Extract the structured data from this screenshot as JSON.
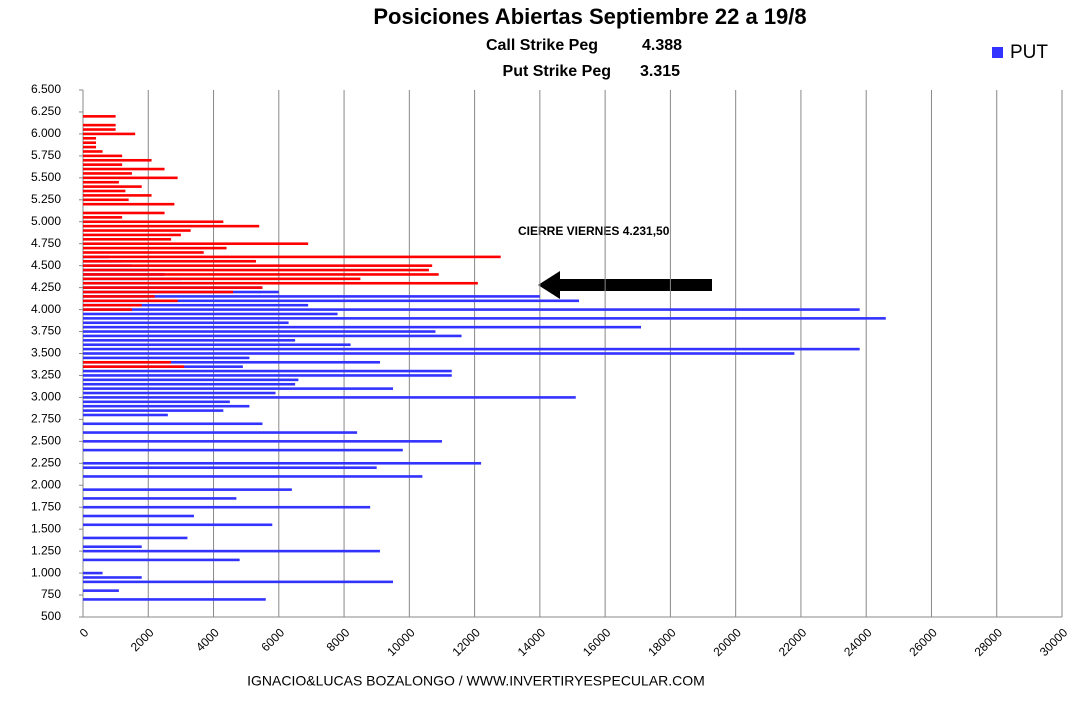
{
  "chart_data": {
    "type": "hbar",
    "title": "Posiciones Abiertas Septiembre 22 a 19/8",
    "subtitle_lines": [
      [
        "Call Strike Peg",
        "4.388"
      ],
      [
        "Put Strike Peg",
        "3.315"
      ]
    ],
    "annotation": "CIERRE VIERNES 4.231,50",
    "footer": "IGNACIO&LUCAS BOZALONGO / WWW.INVERTIRYESPECULAR.COM",
    "legend": "top-right",
    "grid": true,
    "xlim": [
      0,
      30000
    ],
    "xticks": [
      0,
      2000,
      4000,
      6000,
      8000,
      10000,
      12000,
      14000,
      16000,
      18000,
      20000,
      22000,
      24000,
      26000,
      28000,
      30000
    ],
    "ylim": [
      500,
      6500
    ],
    "yticks": [
      {
        "value": 500,
        "label": "500"
      },
      {
        "value": 750,
        "label": "750"
      },
      {
        "value": 1000,
        "label": "1.000"
      },
      {
        "value": 1250,
        "label": "1.250"
      },
      {
        "value": 1500,
        "label": "1.500"
      },
      {
        "value": 1750,
        "label": "1.750"
      },
      {
        "value": 2000,
        "label": "2.000"
      },
      {
        "value": 2250,
        "label": "2.250"
      },
      {
        "value": 2500,
        "label": "2.500"
      },
      {
        "value": 2750,
        "label": "2.750"
      },
      {
        "value": 3000,
        "label": "3.000"
      },
      {
        "value": 3250,
        "label": "3.250"
      },
      {
        "value": 3500,
        "label": "3.500"
      },
      {
        "value": 3750,
        "label": "3.750"
      },
      {
        "value": 4000,
        "label": "4.000"
      },
      {
        "value": 4250,
        "label": "4.250"
      },
      {
        "value": 4500,
        "label": "4.500"
      },
      {
        "value": 4750,
        "label": "4.750"
      },
      {
        "value": 5000,
        "label": "5.000"
      },
      {
        "value": 5250,
        "label": "5.250"
      },
      {
        "value": 5500,
        "label": "5.500"
      },
      {
        "value": 5750,
        "label": "5.750"
      },
      {
        "value": 6000,
        "label": "6.000"
      },
      {
        "value": 6250,
        "label": "6.250"
      },
      {
        "value": 6500,
        "label": "6.500"
      }
    ],
    "y": [
      700,
      800,
      900,
      950,
      1000,
      1150,
      1250,
      1300,
      1400,
      1550,
      1650,
      1750,
      1850,
      1950,
      2100,
      2200,
      2250,
      2400,
      2500,
      2600,
      2700,
      2800,
      2850,
      2900,
      2950,
      3000,
      3050,
      3100,
      3150,
      3200,
      3250,
      3300,
      3350,
      3400,
      3450,
      3500,
      3550,
      3600,
      3650,
      3700,
      3750,
      3800,
      3850,
      3900,
      3950,
      4000,
      4050,
      4100,
      4150,
      4200,
      4250,
      4300,
      4350,
      4400,
      4450,
      4500,
      4550,
      4600,
      4650,
      4700,
      4750,
      4800,
      4850,
      4900,
      4950,
      5000,
      5050,
      5100,
      5150,
      5200,
      5250,
      5300,
      5350,
      5400,
      5450,
      5500,
      5550,
      5600,
      5650,
      5700,
      5750,
      5800,
      5850,
      5900,
      5950,
      6000,
      6050,
      6100,
      6150,
      6200
    ],
    "series": [
      {
        "name": "PUT",
        "color": "#3333ff",
        "values": [
          5600,
          1100,
          9500,
          1800,
          600,
          4800,
          9100,
          1800,
          3200,
          5800,
          3400,
          8800,
          4700,
          6400,
          10400,
          9000,
          12200,
          9800,
          11000,
          8400,
          5500,
          2600,
          4300,
          5100,
          4500,
          15100,
          5900,
          9500,
          6500,
          6600,
          11300,
          11300,
          4900,
          9100,
          5100,
          21800,
          23800,
          8200,
          6500,
          11600,
          10800,
          17100,
          6300,
          24600,
          7800,
          23800,
          6900,
          15200,
          14000,
          6000,
          5500,
          4000,
          3000,
          2500,
          2000,
          1500,
          1200,
          800,
          null,
          null,
          null,
          null,
          null,
          null,
          null,
          null,
          null,
          null,
          null,
          null,
          null,
          null,
          null,
          null,
          null,
          null,
          null,
          null,
          null,
          null,
          null,
          null,
          null,
          null,
          null,
          null,
          null,
          null,
          null,
          null
        ]
      },
      {
        "color": "#ff0000",
        "values": [
          null,
          null,
          null,
          null,
          null,
          null,
          null,
          null,
          null,
          null,
          null,
          null,
          null,
          null,
          null,
          null,
          null,
          null,
          null,
          null,
          null,
          null,
          null,
          null,
          null,
          null,
          null,
          null,
          null,
          null,
          null,
          null,
          3100,
          2700,
          null,
          null,
          null,
          null,
          null,
          null,
          null,
          null,
          null,
          null,
          null,
          1500,
          1800,
          2900,
          2200,
          4600,
          5500,
          12100,
          8500,
          10900,
          10600,
          10700,
          5300,
          12800,
          3700,
          4400,
          6900,
          2700,
          3000,
          3300,
          5400,
          4300,
          1200,
          2500,
          null,
          2800,
          1400,
          2100,
          1300,
          1800,
          1100,
          2900,
          1500,
          2500,
          1200,
          2100,
          1200,
          600,
          400,
          400,
          400,
          1600,
          1000,
          1000,
          null,
          1000
        ]
      }
    ]
  }
}
